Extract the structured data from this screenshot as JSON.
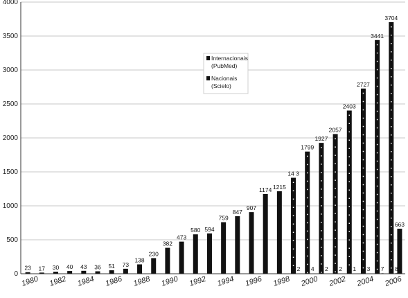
{
  "chart_data": {
    "type": "bar",
    "title": "",
    "xlabel": "",
    "ylabel": "",
    "ylim": [
      0,
      4000
    ],
    "yticks": [
      0,
      500,
      1000,
      1500,
      2000,
      2500,
      3000,
      3500,
      4000
    ],
    "grid": true,
    "legend_position": "top-center",
    "categories": [
      "1980",
      "1981",
      "1982",
      "1983",
      "1984",
      "1985",
      "1986",
      "1987",
      "1988",
      "1989",
      "1990",
      "1991",
      "1992",
      "1993",
      "1994",
      "1995",
      "1996",
      "1997",
      "1998",
      "1999",
      "2000",
      "2001",
      "2002",
      "2003",
      "2004",
      "2005",
      "2006"
    ],
    "tick_labels": [
      "1980",
      "1982",
      "1984",
      "1986",
      "1988",
      "1990",
      "1992",
      "1994",
      "1996",
      "1998",
      "2000",
      "2002",
      "2004",
      "2006"
    ],
    "series": [
      {
        "name": "Internacionais (PubMed)",
        "color": "#111111",
        "values": [
          23,
          17,
          30,
          40,
          43,
          36,
          51,
          73,
          138,
          230,
          382,
          473,
          580,
          594,
          759,
          847,
          907,
          1174,
          1215,
          1413,
          1799,
          1927,
          2057,
          2403,
          2727,
          3441,
          3704
        ],
        "labels": [
          "23",
          "17",
          "30",
          "40",
          "43",
          "36",
          "51",
          "73",
          "138",
          "230",
          "382",
          "473",
          "580",
          "594",
          "759",
          "847",
          "907",
          "1174",
          "1215",
          "14 3",
          "1799",
          "1927",
          "2057",
          "2403",
          "2727",
          "3441",
          "3704"
        ]
      },
      {
        "name": "Nacionais (Scielo)",
        "color": "#111111",
        "values": [
          null,
          null,
          null,
          null,
          null,
          null,
          null,
          null,
          null,
          null,
          null,
          null,
          null,
          null,
          null,
          null,
          null,
          null,
          null,
          2,
          4,
          2,
          2,
          1,
          3,
          7,
          8
        ],
        "labels": [
          null,
          null,
          null,
          null,
          null,
          null,
          null,
          null,
          null,
          null,
          null,
          null,
          null,
          null,
          null,
          null,
          null,
          null,
          null,
          "2",
          "4",
          "2",
          "2",
          "1",
          "3",
          "7",
          "8"
        ]
      }
    ],
    "last_bar": {
      "label": "663",
      "value": 663
    }
  },
  "legend": {
    "items": [
      {
        "line1": "Internacionais",
        "line2": "(PubMed)"
      },
      {
        "line1": "Nacionais",
        "line2": "(Scielo)"
      }
    ]
  }
}
